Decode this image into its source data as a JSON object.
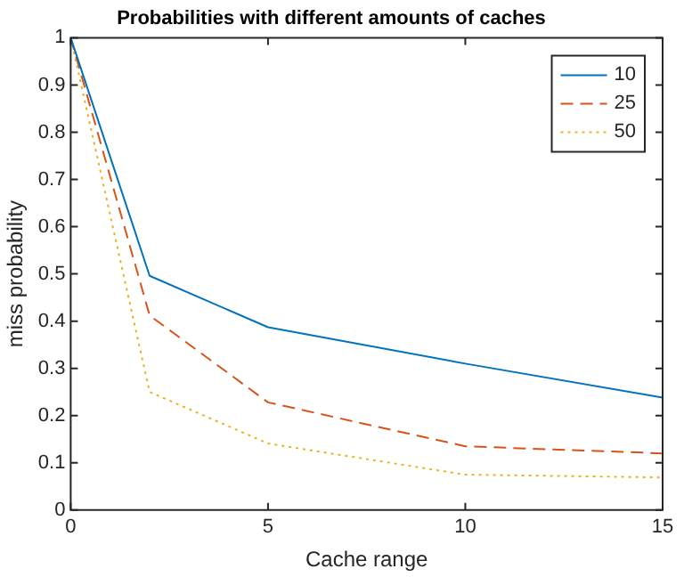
{
  "chart_data": {
    "type": "line",
    "title": "Probabilities with different amounts of caches",
    "xlabel": "Cache range",
    "ylabel": "miss probability",
    "x": [
      0,
      2,
      5,
      10,
      15
    ],
    "series": [
      {
        "name": "10",
        "color": "#0072bd",
        "line_style": "solid",
        "values": [
          1,
          0.496,
          0.387,
          0.31,
          0.238
        ]
      },
      {
        "name": "25",
        "color": "#d95319",
        "line_style": "dashed",
        "values": [
          1,
          0.412,
          0.228,
          0.135,
          0.12
        ]
      },
      {
        "name": "50",
        "color": "#edb120",
        "line_style": "dotted",
        "values": [
          1,
          0.25,
          0.141,
          0.075,
          0.069
        ]
      }
    ],
    "xlim": [
      0,
      15
    ],
    "xticks": [
      0,
      5,
      10,
      15
    ],
    "ylim": [
      0,
      1
    ],
    "yticks": [
      0,
      0.1,
      0.2,
      0.3,
      0.4,
      0.5,
      0.6,
      0.7,
      0.8,
      0.9,
      1
    ],
    "grid": false,
    "legend": "top right",
    "marker": "none"
  }
}
